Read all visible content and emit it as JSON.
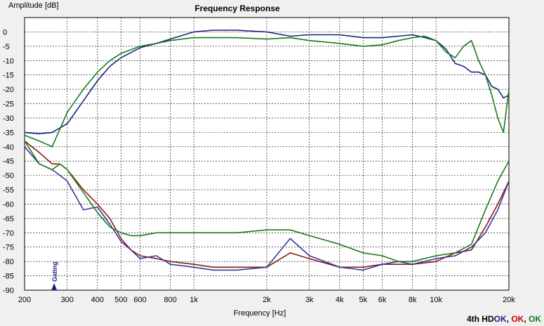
{
  "chart_data": {
    "type": "line",
    "title": "Frequency Response",
    "xlabel": "Frequency [Hz]",
    "ylabel": "Amplitude [dB]",
    "x_scale": "log",
    "xlim": [
      200,
      20000
    ],
    "ylim": [
      -90,
      5
    ],
    "grid": true,
    "x_ticks": [
      200,
      300,
      400,
      500,
      600,
      800,
      1000,
      2000,
      3000,
      4000,
      5000,
      6000,
      8000,
      10000,
      20000
    ],
    "x_tick_labels": [
      "200",
      "300",
      "400",
      "500",
      "600",
      "800",
      "1k",
      "2k",
      "3k",
      "4k",
      "5k",
      "6k",
      "8k",
      "10k",
      "20k"
    ],
    "y_ticks": [
      0,
      -5,
      -10,
      -15,
      -20,
      -25,
      -30,
      -35,
      -40,
      -45,
      -50,
      -55,
      -60,
      -65,
      -70,
      -75,
      -80,
      -85,
      -90
    ],
    "marker_label": "Gating",
    "marker_x": 265,
    "series": [
      {
        "color": "#1a237e",
        "x": [
          200,
          230,
          260,
          300,
          350,
          400,
          450,
          500,
          600,
          700,
          800,
          1000,
          1200,
          1500,
          2000,
          2500,
          3000,
          4000,
          5000,
          6000,
          7000,
          8000,
          9000,
          10000,
          11000,
          12000,
          13000,
          14000,
          15000,
          16000,
          17000,
          18000,
          19000,
          20000
        ],
        "y": [
          -35,
          -35.5,
          -35,
          -32,
          -24,
          -17,
          -12,
          -9,
          -5.5,
          -4,
          -2.5,
          0,
          0.6,
          0.6,
          0,
          -1.5,
          -1,
          -1,
          -2,
          -2,
          -1.5,
          -1,
          -2,
          -3,
          -6,
          -11,
          -12,
          -14,
          -14,
          -15,
          -19,
          -20,
          -23,
          -22
        ]
      },
      {
        "color": "#1a7a1a",
        "x": [
          200,
          230,
          260,
          300,
          350,
          400,
          450,
          500,
          600,
          700,
          800,
          1000,
          1200,
          1500,
          2000,
          2500,
          3000,
          4000,
          5000,
          6000,
          7000,
          8000,
          9000,
          10000,
          11000,
          12000,
          13000,
          14000,
          15000,
          16000,
          17000,
          18000,
          19000,
          20000
        ],
        "y": [
          -36,
          -38,
          -40,
          -28,
          -20,
          -14,
          -10,
          -7.5,
          -5,
          -4,
          -3,
          -2,
          -2,
          -2,
          -2.5,
          -2,
          -3,
          -4,
          -5,
          -4.5,
          -3,
          -2,
          -1.5,
          -3,
          -7,
          -9,
          -5,
          -3,
          -10,
          -15,
          -22,
          -30,
          -35,
          -20
        ]
      },
      {
        "color": "#8b1a1a",
        "x": [
          200,
          230,
          260,
          280,
          300,
          350,
          400,
          450,
          500,
          550,
          600,
          700,
          800,
          1000,
          1200,
          1500,
          2000,
          2500,
          3000,
          4000,
          5000,
          6000,
          7000,
          8000,
          10000,
          12000,
          14000,
          16000,
          18000,
          20000
        ],
        "y": [
          -38,
          -42,
          -46,
          -46,
          -48,
          -55,
          -60,
          -65,
          -72,
          -76,
          -78,
          -79,
          -80,
          -81,
          -82,
          -82,
          -82,
          -77,
          -79,
          -82,
          -82,
          -81,
          -81,
          -81,
          -80,
          -77,
          -76,
          -68,
          -60,
          -52
        ]
      },
      {
        "color": "#3a3a9a",
        "x": [
          200,
          230,
          260,
          280,
          300,
          350,
          400,
          450,
          500,
          550,
          600,
          700,
          800,
          1000,
          1200,
          1500,
          2000,
          2500,
          3000,
          4000,
          5000,
          6000,
          7000,
          8000,
          10000,
          12000,
          14000,
          16000,
          18000,
          20000
        ],
        "y": [
          -40,
          -46,
          -48,
          -50,
          -52,
          -62,
          -61,
          -67,
          -73,
          -76,
          -79,
          -78,
          -81,
          -82,
          -83,
          -83,
          -82,
          -72,
          -78,
          -82,
          -83,
          -81,
          -80,
          -81,
          -79,
          -78,
          -75,
          -70,
          -62,
          -52
        ]
      },
      {
        "color": "#1e7a1e",
        "x": [
          200,
          230,
          260,
          280,
          300,
          350,
          400,
          450,
          500,
          550,
          600,
          700,
          800,
          1000,
          1200,
          1500,
          2000,
          2500,
          3000,
          4000,
          5000,
          6000,
          7000,
          8000,
          10000,
          12000,
          14000,
          16000,
          18000,
          20000
        ],
        "y": [
          -38,
          -46,
          -48,
          -46,
          -48,
          -56,
          -63,
          -68,
          -70,
          -71,
          -71,
          -70,
          -70,
          -70,
          -70,
          -70,
          -69,
          -69,
          -71,
          -74,
          -77,
          -78,
          -80,
          -80,
          -78,
          -77,
          -74,
          -62,
          -52,
          -45
        ]
      }
    ]
  },
  "status": {
    "label": "4th HD",
    "ok1": "OK",
    "sep1": ",",
    "ok2": "OK",
    "sep2": ",",
    "ok3": "OK",
    "label_color": "#000000",
    "ok1_color": "#1a237e",
    "ok2_color": "#cc0000",
    "ok3_color": "#1a7a1a"
  }
}
